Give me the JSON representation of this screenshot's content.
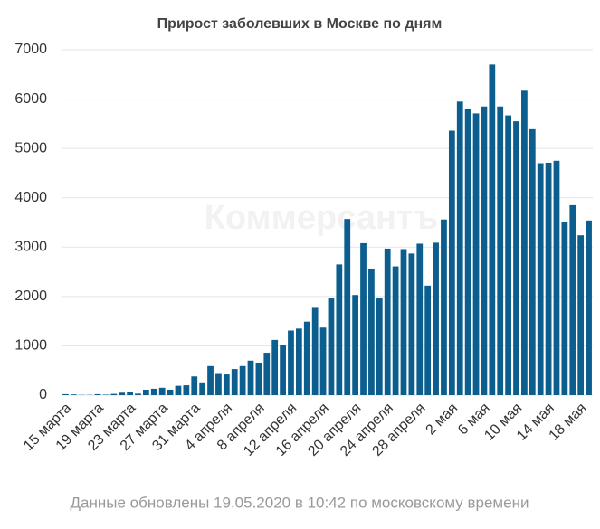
{
  "chart_data": {
    "type": "bar",
    "title": "Прирост заболевших в Москве по дням",
    "footnote": "Данные обновлены 19.05.2020 в 10:42 по московскому времени",
    "watermark": "Коммерсантъ",
    "categories": [
      "15 марта",
      null,
      null,
      null,
      "19 марта",
      null,
      null,
      null,
      "23 марта",
      null,
      null,
      null,
      "27 марта",
      null,
      null,
      null,
      "31 марта",
      null,
      null,
      null,
      "4 апреля",
      null,
      null,
      null,
      "8 апреля",
      null,
      null,
      null,
      "12 апреля",
      null,
      null,
      null,
      "16 апреля",
      null,
      null,
      null,
      "20 апреля",
      null,
      null,
      null,
      "24 апреля",
      null,
      null,
      null,
      "28 апреля",
      null,
      null,
      null,
      "2 мая",
      null,
      null,
      null,
      "6 мая",
      null,
      null,
      null,
      "10 мая",
      null,
      null,
      null,
      "14 мая",
      null,
      null,
      null,
      "18 мая",
      null
    ],
    "values": [
      20,
      15,
      5,
      5,
      20,
      10,
      25,
      50,
      70,
      30,
      110,
      130,
      150,
      110,
      190,
      200,
      380,
      260,
      590,
      430,
      420,
      530,
      590,
      700,
      660,
      860,
      1120,
      1020,
      1310,
      1350,
      1490,
      1770,
      1370,
      1960,
      2650,
      3570,
      2030,
      3080,
      2550,
      1960,
      2970,
      2610,
      2960,
      2870,
      3070,
      2220,
      3090,
      3560,
      5360,
      5950,
      5800,
      5710,
      5850,
      6700,
      5850,
      5670,
      5550,
      6170,
      5390,
      4700,
      4710,
      4750,
      3500,
      3850,
      3240,
      3540
    ],
    "color": "#0b5e8e",
    "ylim": [
      0,
      7000
    ],
    "yticks": [
      0,
      1000,
      2000,
      3000,
      4000,
      5000,
      6000,
      7000
    ],
    "grid": true
  }
}
